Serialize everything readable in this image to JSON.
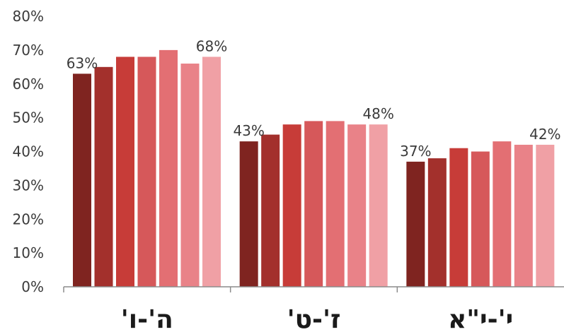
{
  "chart_data": {
    "type": "bar",
    "categories": [
      "ה'-ו'",
      "ז'-ט'",
      "י'-י\"א"
    ],
    "series": [
      {
        "values": [
          63,
          43,
          37
        ]
      },
      {
        "values": [
          65,
          45,
          38
        ]
      },
      {
        "values": [
          68,
          48,
          41
        ]
      },
      {
        "values": [
          68,
          49,
          40
        ]
      },
      {
        "values": [
          70,
          49,
          43
        ]
      },
      {
        "values": [
          66,
          48,
          42
        ]
      },
      {
        "values": [
          68,
          48,
          42
        ]
      }
    ],
    "series_colors": [
      "#7f2420",
      "#a3302c",
      "#c73c38",
      "#d6585a",
      "#e36f73",
      "#e98288",
      "#f0a0a5"
    ],
    "data_labels": [
      {
        "category_index": 0,
        "series_index": 0,
        "text": "63%"
      },
      {
        "category_index": 0,
        "series_index": 6,
        "text": "68%"
      },
      {
        "category_index": 1,
        "series_index": 0,
        "text": "43%"
      },
      {
        "category_index": 1,
        "series_index": 6,
        "text": "48%"
      },
      {
        "category_index": 2,
        "series_index": 0,
        "text": "37%"
      },
      {
        "category_index": 2,
        "series_index": 6,
        "text": "42%"
      }
    ],
    "ylim": [
      0,
      80
    ],
    "yticks": [
      "0%",
      "10%",
      "20%",
      "30%",
      "40%",
      "50%",
      "60%",
      "70%",
      "80%"
    ],
    "title": "",
    "xlabel": "",
    "ylabel": "",
    "grid": false,
    "legend": "none"
  }
}
